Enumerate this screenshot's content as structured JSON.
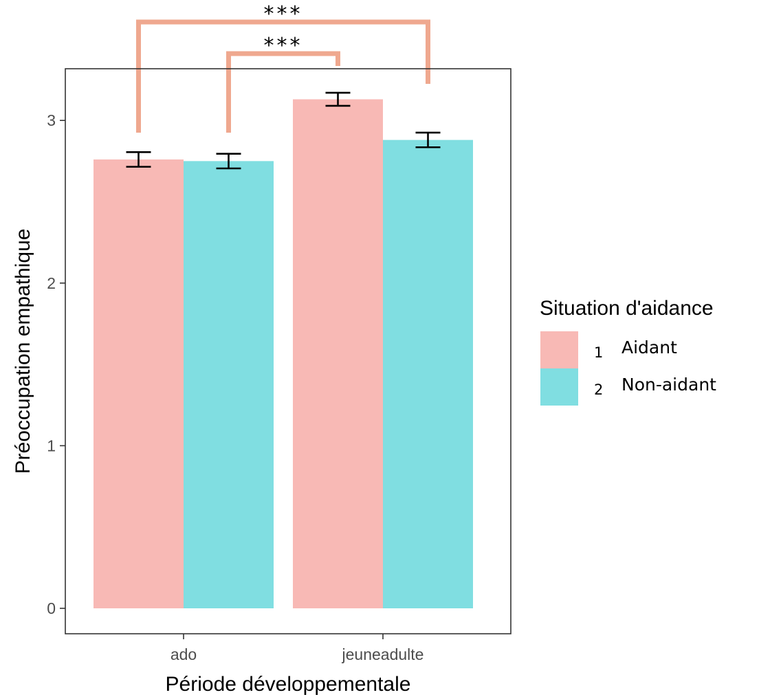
{
  "chart_data": {
    "type": "bar",
    "categories": [
      "ado",
      "jeuneadulte"
    ],
    "series": [
      {
        "name": "Aidant",
        "legend_number": "1",
        "color": "#F8B9B5",
        "values": [
          2.76,
          3.13
        ],
        "error": [
          0.045,
          0.04
        ]
      },
      {
        "name": "Non-aidant",
        "legend_number": "2",
        "color": "#80DEE1",
        "values": [
          2.75,
          2.88
        ],
        "error": [
          0.045,
          0.045
        ]
      }
    ],
    "xlabel": "Période développementale",
    "ylabel": "Préoccupation empathique",
    "ylim": [
      0,
      3.3
    ],
    "yticks": [
      "0",
      "1",
      "2",
      "3"
    ],
    "legend": {
      "title": "Situation d'aidance",
      "placement": "right"
    },
    "significance": [
      {
        "label": "***",
        "from": {
          "category": "ado",
          "series": "Aidant"
        },
        "to": {
          "category": "jeuneadulte",
          "series": "Non-aidant"
        }
      },
      {
        "label": "***",
        "from": {
          "category": "ado",
          "series": "Non-aidant"
        },
        "to": {
          "category": "jeuneadulte",
          "series": "Aidant"
        }
      }
    ],
    "significance_color": "#EFA88F",
    "grid": false
  }
}
